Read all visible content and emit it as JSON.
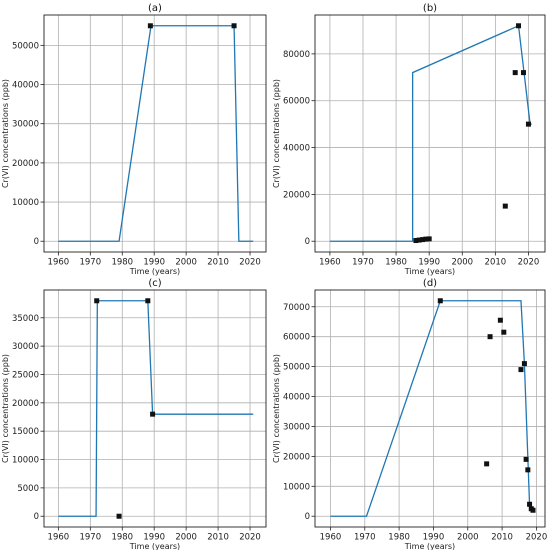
{
  "chart_data": [
    {
      "type": "line",
      "title": "(a)",
      "xlabel": "Time (years)",
      "ylabel": "Cr(VI) concentrations (ppb)",
      "xlim": [
        1955.5,
        2025
      ],
      "ylim": [
        -2750,
        57750
      ],
      "xticks": [
        1960,
        1970,
        1980,
        1990,
        2000,
        2010,
        2020
      ],
      "yticks": [
        0,
        10000,
        20000,
        30000,
        40000,
        50000
      ],
      "grid": true,
      "line": {
        "x": [
          1960,
          1979,
          1989,
          2015,
          2016.5,
          2021
        ],
        "y": [
          0,
          0,
          55000,
          55000,
          0,
          0
        ]
      },
      "points": {
        "x": [
          1988.8,
          2015
        ],
        "y": [
          55000,
          55000
        ]
      }
    },
    {
      "type": "line",
      "title": "(b)",
      "xlabel": "Time (years)",
      "ylabel": "Cr(VI) concentrations (ppb)",
      "xlim": [
        1955.5,
        2025
      ],
      "ylim": [
        -4600,
        96600
      ],
      "xticks": [
        1960,
        1970,
        1980,
        1990,
        2000,
        2010,
        2020
      ],
      "yticks": [
        0,
        20000,
        40000,
        60000,
        80000
      ],
      "grid": true,
      "line": {
        "x": [
          1960,
          1985,
          1985,
          2017,
          2020.5,
          2021
        ],
        "y": [
          0,
          0,
          72000,
          92000,
          50000,
          50000
        ]
      },
      "points": {
        "x": [
          1986,
          1987,
          1988,
          1989,
          1990,
          2013,
          2016,
          2017,
          2018.5,
          2020
        ],
        "y": [
          300,
          500,
          700,
          900,
          1000,
          15000,
          72000,
          92000,
          72000,
          50000
        ]
      }
    },
    {
      "type": "line",
      "title": "(c)",
      "xlabel": "Time (years)",
      "ylabel": "Cr(VI) concentrations (ppb)",
      "xlim": [
        1955.5,
        2025
      ],
      "ylim": [
        -1900,
        39900
      ],
      "xticks": [
        1960,
        1970,
        1980,
        1990,
        2000,
        2010,
        2020
      ],
      "yticks": [
        0,
        5000,
        10000,
        15000,
        20000,
        25000,
        30000,
        35000
      ],
      "grid": true,
      "line": {
        "x": [
          1960,
          1971.8,
          1972.2,
          1988,
          1989.5,
          2021
        ],
        "y": [
          0,
          0,
          38000,
          38000,
          18000,
          18000
        ]
      },
      "points": {
        "x": [
          1972,
          1979,
          1988,
          1989.5
        ],
        "y": [
          38000,
          0,
          38000,
          18000
        ]
      }
    },
    {
      "type": "line",
      "title": "(d)",
      "xlabel": "Time (years)",
      "ylabel": "Cr(VI) concentrations (ppb)",
      "xlim": [
        1955.5,
        2022.5
      ],
      "ylim": [
        -3600,
        75600
      ],
      "xticks": [
        1960,
        1970,
        1980,
        1990,
        2000,
        2010,
        2020
      ],
      "yticks": [
        0,
        10000,
        20000,
        30000,
        40000,
        50000,
        60000,
        70000
      ],
      "grid": true,
      "line": {
        "x": [
          1960,
          1970.5,
          1992,
          2015.5,
          2016.5,
          2018,
          2019
        ],
        "y": [
          0,
          0,
          72000,
          72000,
          51000,
          4000,
          2000
        ]
      },
      "points": {
        "x": [
          1992,
          2005.5,
          2006.5,
          2009.5,
          2010.5,
          2015.5,
          2016.5,
          2017,
          2017.5,
          2018,
          2018.5,
          2019
        ],
        "y": [
          72000,
          17500,
          60000,
          65500,
          61500,
          49000,
          51000,
          19000,
          15500,
          4000,
          2500,
          2000
        ]
      }
    }
  ]
}
